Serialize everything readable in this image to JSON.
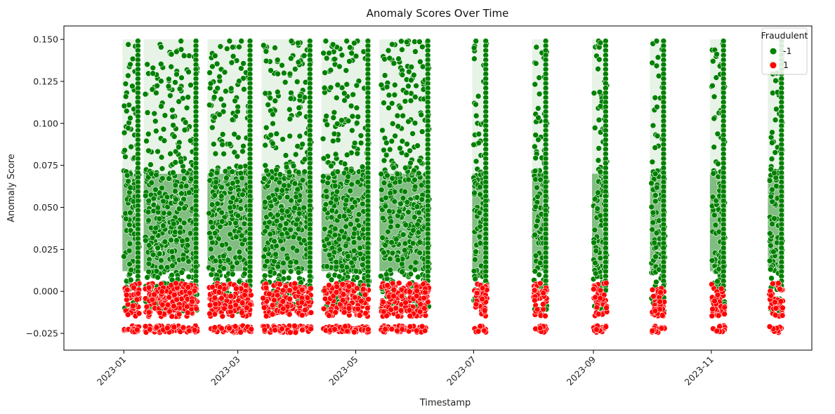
{
  "chart_data": {
    "type": "scatter",
    "title": "Anomaly Scores Over Time",
    "xlabel": "Timestamp",
    "ylabel": "Anomaly Score",
    "xlim": [
      "2022-12-01",
      "2023-12-23"
    ],
    "ylim": [
      -0.035,
      0.158
    ],
    "x_ticks": [
      "2023-01",
      "2023-03",
      "2023-05",
      "2023-07",
      "2023-09",
      "2023-11"
    ],
    "y_ticks": [
      "0.150",
      "0.125",
      "0.100",
      "0.075",
      "0.050",
      "0.025",
      "0.000",
      "−0.025"
    ],
    "y_tick_values": [
      0.15,
      0.125,
      0.1,
      0.075,
      0.05,
      0.025,
      0.0,
      -0.025
    ],
    "grid": false,
    "legend": {
      "title": "Fraudulent",
      "placement": "top-right",
      "entries": [
        {
          "label": "-1",
          "color": "#008000"
        },
        {
          "label": "1",
          "color": "#ff0000"
        }
      ]
    },
    "series": [
      {
        "name": "-1",
        "color": "#008000",
        "y_range": [
          -0.012,
          0.149
        ]
      },
      {
        "name": "1",
        "color": "#ff0000",
        "y_range": [
          -0.026,
          0.005
        ]
      }
    ],
    "activity_windows": [
      {
        "start": "2023-01-01",
        "end": "2023-01-08"
      },
      {
        "start": "2023-01-12",
        "end": "2023-02-07"
      },
      {
        "start": "2023-02-14",
        "end": "2023-03-07"
      },
      {
        "start": "2023-03-14",
        "end": "2023-04-07"
      },
      {
        "start": "2023-04-14",
        "end": "2023-05-07"
      },
      {
        "start": "2023-05-14",
        "end": "2023-06-07"
      },
      {
        "start": "2023-07-01",
        "end": "2023-07-07"
      },
      {
        "start": "2023-08-01",
        "end": "2023-08-07"
      },
      {
        "start": "2023-09-01",
        "end": "2023-09-07"
      },
      {
        "start": "2023-10-01",
        "end": "2023-10-07"
      },
      {
        "start": "2023-11-01",
        "end": "2023-11-07"
      },
      {
        "start": "2023-12-01",
        "end": "2023-12-07"
      }
    ]
  }
}
